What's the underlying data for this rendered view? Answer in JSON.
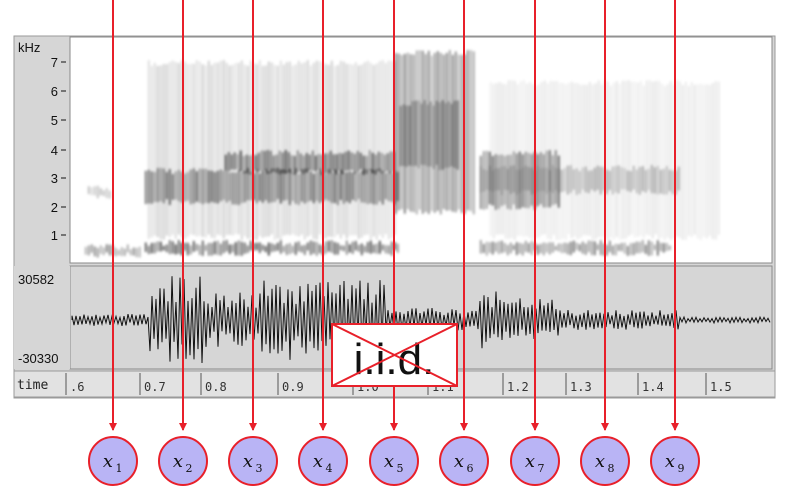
{
  "spectrogram": {
    "unit_label": "kHz",
    "freq_ticks": [
      "7",
      "6",
      "5",
      "4",
      "3",
      "2",
      "1"
    ]
  },
  "waveform": {
    "max_label": "30582",
    "min_label": "-30330"
  },
  "time_axis": {
    "label": "time",
    "ticks": [
      ".6",
      "0.7",
      "0.8",
      "0.9",
      "1.0",
      "1.1",
      "1.2",
      "1.3",
      "1.4",
      "1.5"
    ]
  },
  "overlay": {
    "iid_label": "i.i.d."
  },
  "nodes": [
    {
      "var": "x",
      "sub": "1"
    },
    {
      "var": "x",
      "sub": "2"
    },
    {
      "var": "x",
      "sub": "3"
    },
    {
      "var": "x",
      "sub": "4"
    },
    {
      "var": "x",
      "sub": "5"
    },
    {
      "var": "x",
      "sub": "6"
    },
    {
      "var": "x",
      "sub": "7"
    },
    {
      "var": "x",
      "sub": "8"
    },
    {
      "var": "x",
      "sub": "9"
    }
  ],
  "colors": {
    "arrow": "#e8202a",
    "node_fill": "#b9b4f5",
    "node_stroke": "#e8202a",
    "panel_bg": "#d6d6d6",
    "plot_bg": "#ffffff",
    "ink": "#111111"
  }
}
